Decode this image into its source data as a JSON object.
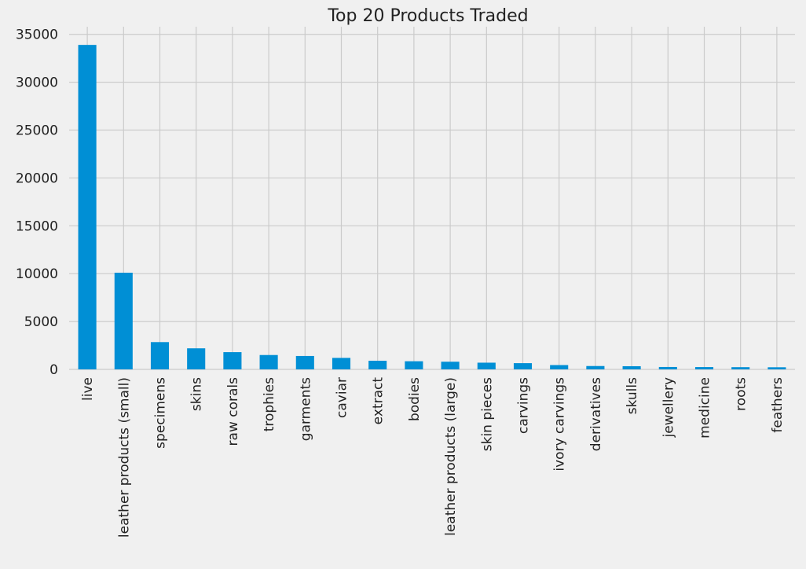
{
  "chart_data": {
    "type": "bar",
    "title": "Top 20 Products Traded",
    "xlabel": "",
    "ylabel": "",
    "categories": [
      "live",
      "leather products (small)",
      "specimens",
      "skins",
      "raw corals",
      "trophies",
      "garments",
      "caviar",
      "extract",
      "bodies",
      "leather products (large)",
      "skin pieces",
      "carvings",
      "ivory carvings",
      "derivatives",
      "skulls",
      "jewellery",
      "medicine",
      "roots",
      "feathers"
    ],
    "values": [
      33900,
      10100,
      2850,
      2200,
      1800,
      1500,
      1400,
      1200,
      900,
      850,
      800,
      700,
      650,
      450,
      350,
      330,
      250,
      240,
      230,
      220
    ],
    "ylim": [
      0,
      35800
    ],
    "yticks": [
      0,
      5000,
      10000,
      15000,
      20000,
      25000,
      30000,
      35000
    ],
    "bar_color": "#008fd5",
    "grid_color": "#cbcbcb",
    "background_color": "#f0f0f0",
    "grid": true,
    "legend": false
  }
}
